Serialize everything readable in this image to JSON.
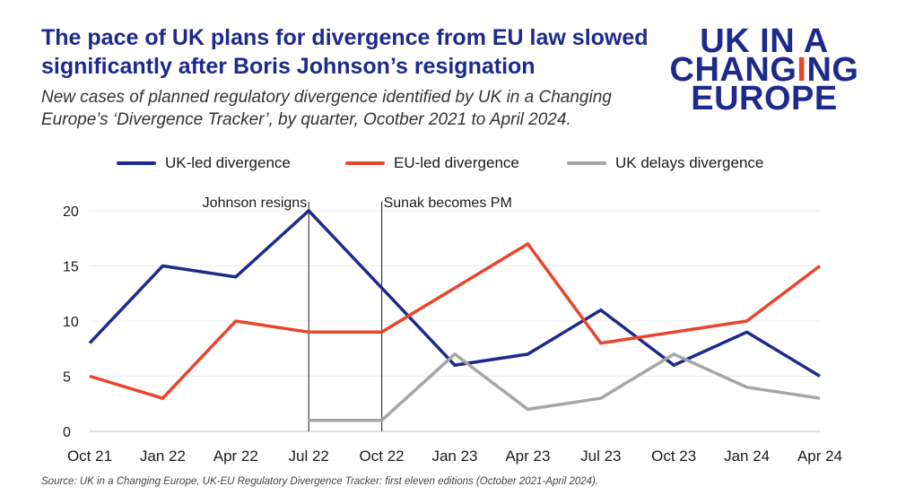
{
  "header": {
    "title_line1": "The pace of UK plans for divergence from EU law slowed",
    "title_line2": "significantly after Boris Johnson’s resignation",
    "subtitle_line1": "New cases of planned regulatory divergence identified by UK in a Changing",
    "subtitle_line2": "Europe’s ‘Divergence Tracker’, by quarter, Ocotber 2021 to April 2024."
  },
  "logo": {
    "line1": "UK IN A",
    "line2_a": "CHAN",
    "line2_b": "G",
    "line2_c": "I",
    "line2_d": "NG",
    "line3": "EUROPE",
    "colors": {
      "primary": "#1d2a8c",
      "accent": "#e8452c"
    }
  },
  "footer": {
    "source": "Source: UK in a Changing Europe, UK-EU Regulatory Divergence Tracker: first eleven editions (October 2021-April 2024)."
  },
  "chart_data": {
    "type": "line",
    "title": "The pace of UK plans for divergence from EU law slowed significantly after Boris Johnson’s resignation",
    "xlabel": "",
    "ylabel": "",
    "categories": [
      "Oct 21",
      "Jan 22",
      "Apr 22",
      "Jul 22",
      "Oct 22",
      "Jan 23",
      "Apr 23",
      "Jul 23",
      "Oct 23",
      "Jan 24",
      "Apr 24"
    ],
    "ylim": [
      0,
      20
    ],
    "yticks": [
      0,
      5,
      10,
      15,
      20
    ],
    "grid": true,
    "legend_position": "top",
    "series": [
      {
        "name": "UK-led divergence",
        "color": "#1d2a8c",
        "values": [
          8,
          15,
          14,
          20,
          13,
          6,
          7,
          11,
          6,
          9,
          5
        ]
      },
      {
        "name": "EU-led divergence",
        "color": "#e8452c",
        "values": [
          5,
          3,
          10,
          9,
          9,
          13,
          17,
          8,
          9,
          10,
          15
        ]
      },
      {
        "name": "UK delays divergence",
        "color": "#a6a6a6",
        "values": [
          null,
          null,
          null,
          1,
          1,
          7,
          2,
          3,
          7,
          4,
          3
        ]
      }
    ],
    "annotations": [
      {
        "label": "Johnson resigns",
        "x_index": 3
      },
      {
        "label": "Sunak becomes PM",
        "x_index": 4
      }
    ]
  }
}
